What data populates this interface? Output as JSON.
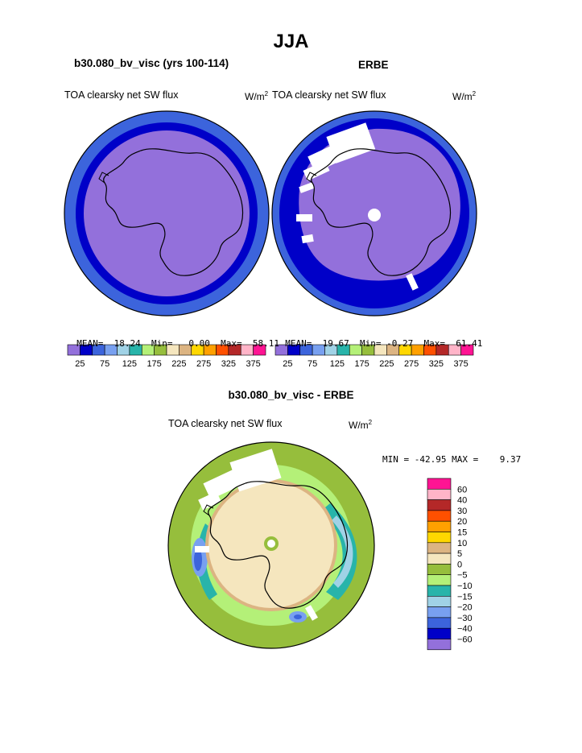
{
  "page": {
    "main_title": "JJA",
    "diff_title": "b30.080_bv_visc - ERBE"
  },
  "colors": {
    "palette": [
      "#9370DB",
      "#0000C8",
      "#3C64DC",
      "#78A0F0",
      "#A0D2E6",
      "#28B4AA",
      "#B4F078",
      "#96BE3C",
      "#F5E6BE",
      "#DCB482",
      "#FFD700",
      "#FFA000",
      "#FF5000",
      "#B42828",
      "#FFB4C8",
      "#FF1493"
    ],
    "diff_palette": [
      "#9370DB",
      "#0000C8",
      "#3C64DC",
      "#78A0F0",
      "#A0D2E6",
      "#28B4AA",
      "#B4F078",
      "#96BE3C",
      "#F5E6BE",
      "#DCB482",
      "#FFD700",
      "#FFA000",
      "#FF5000",
      "#B42828",
      "#FFB4C8",
      "#FF1493"
    ]
  },
  "chart_data": [
    {
      "type": "heatmap",
      "projection": "south polar stereographic",
      "title": "b30.080_bv_visc (yrs 100-114)",
      "field_label": "TOA clearsky net SW flux",
      "units_label": "W/m",
      "units_sup": "2",
      "stats": {
        "mean_label": "MEAN=",
        "mean": "18.24",
        "min_label": "Min=",
        "min": "0.00",
        "max_label": "Max=",
        "max": "58.11"
      },
      "colorbar_ticks": [
        "25",
        "75",
        "125",
        "175",
        "225",
        "275",
        "325",
        "375"
      ],
      "levels": [
        25,
        50,
        75,
        100,
        125,
        150,
        175,
        200,
        225,
        250,
        275,
        300,
        325,
        350,
        375
      ],
      "rings": [
        {
          "label": "outer",
          "color_index": 2
        },
        {
          "label": "middle",
          "color_index": 1
        },
        {
          "label": "inner",
          "color_index": 0
        }
      ]
    },
    {
      "type": "heatmap",
      "projection": "south polar stereographic",
      "title": "ERBE",
      "field_label": "TOA clearsky net SW flux",
      "units_label": "W/m",
      "units_sup": "2",
      "stats": {
        "mean_label": "MEAN=",
        "mean": "19.67",
        "min_label": "Min=",
        "min": "-0.27",
        "max_label": "Max=",
        "max": "61.41"
      },
      "colorbar_ticks": [
        "25",
        "75",
        "125",
        "175",
        "225",
        "275",
        "325",
        "375"
      ],
      "levels": [
        25,
        50,
        75,
        100,
        125,
        150,
        175,
        200,
        225,
        250,
        275,
        300,
        325,
        350,
        375
      ],
      "missing_data": "white patches"
    },
    {
      "type": "heatmap",
      "projection": "south polar stereographic",
      "title": "b30.080_bv_visc - ERBE",
      "field_label": "TOA clearsky net SW flux",
      "units_label": "W/m",
      "units_sup": "2",
      "stats_text": "MIN = -42.95 MAX =    9.37",
      "colorbar_labels": [
        "60",
        "40",
        "30",
        "20",
        "15",
        "10",
        "5",
        "0",
        "−5",
        "−10",
        "−15",
        "−20",
        "−30",
        "−40",
        "−60"
      ],
      "levels": [
        60,
        40,
        30,
        20,
        15,
        10,
        5,
        0,
        -5,
        -10,
        -15,
        -20,
        -30,
        -40,
        -60
      ]
    }
  ]
}
